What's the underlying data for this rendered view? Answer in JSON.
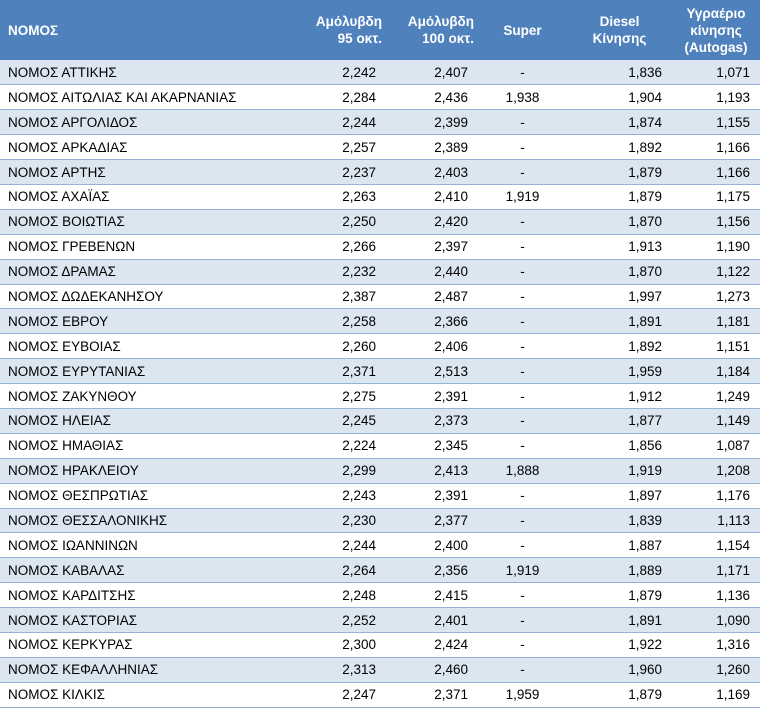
{
  "columns": {
    "name": "ΝΟΜΟΣ",
    "unleaded95_l1": "Αμόλυβδη",
    "unleaded95_l2": "95 οκτ.",
    "unleaded100_l1": "Αμόλυβδη",
    "unleaded100_l2": "100 οκτ.",
    "super": "Super",
    "diesel_l1": "Diesel",
    "diesel_l2": "Κίνησης",
    "lpg_l1": "Υγραέριο",
    "lpg_l2": "κίνησης",
    "lpg_l3": "(Autogas)"
  },
  "rows": [
    {
      "name": "ΝΟΜΟΣ ΑΤΤΙΚΗΣ",
      "u95": "2,242",
      "u100": "2,407",
      "super": "-",
      "diesel": "1,836",
      "lpg": "1,071"
    },
    {
      "name": "ΝΟΜΟΣ ΑΙΤΩΛΙΑΣ ΚΑΙ ΑΚΑΡΝΑΝΙΑΣ",
      "u95": "2,284",
      "u100": "2,436",
      "super": "1,938",
      "diesel": "1,904",
      "lpg": "1,193"
    },
    {
      "name": "ΝΟΜΟΣ ΑΡΓΟΛΙΔΟΣ",
      "u95": "2,244",
      "u100": "2,399",
      "super": "-",
      "diesel": "1,874",
      "lpg": "1,155"
    },
    {
      "name": "ΝΟΜΟΣ ΑΡΚΑΔΙΑΣ",
      "u95": "2,257",
      "u100": "2,389",
      "super": "-",
      "diesel": "1,892",
      "lpg": "1,166"
    },
    {
      "name": "ΝΟΜΟΣ ΑΡΤΗΣ",
      "u95": "2,237",
      "u100": "2,403",
      "super": "-",
      "diesel": "1,879",
      "lpg": "1,166"
    },
    {
      "name": "ΝΟΜΟΣ ΑΧΑΪΑΣ",
      "u95": "2,263",
      "u100": "2,410",
      "super": "1,919",
      "diesel": "1,879",
      "lpg": "1,175"
    },
    {
      "name": "ΝΟΜΟΣ ΒΟΙΩΤΙΑΣ",
      "u95": "2,250",
      "u100": "2,420",
      "super": "-",
      "diesel": "1,870",
      "lpg": "1,156"
    },
    {
      "name": "ΝΟΜΟΣ ΓΡΕΒΕΝΩΝ",
      "u95": "2,266",
      "u100": "2,397",
      "super": "-",
      "diesel": "1,913",
      "lpg": "1,190"
    },
    {
      "name": "ΝΟΜΟΣ ΔΡΑΜΑΣ",
      "u95": "2,232",
      "u100": "2,440",
      "super": "-",
      "diesel": "1,870",
      "lpg": "1,122"
    },
    {
      "name": "ΝΟΜΟΣ ΔΩΔΕΚΑΝΗΣΟΥ",
      "u95": "2,387",
      "u100": "2,487",
      "super": "-",
      "diesel": "1,997",
      "lpg": "1,273"
    },
    {
      "name": "ΝΟΜΟΣ ΕΒΡΟΥ",
      "u95": "2,258",
      "u100": "2,366",
      "super": "-",
      "diesel": "1,891",
      "lpg": "1,181"
    },
    {
      "name": "ΝΟΜΟΣ ΕΥΒΟΙΑΣ",
      "u95": "2,260",
      "u100": "2,406",
      "super": "-",
      "diesel": "1,892",
      "lpg": "1,151"
    },
    {
      "name": "ΝΟΜΟΣ ΕΥΡΥΤΑΝΙΑΣ",
      "u95": "2,371",
      "u100": "2,513",
      "super": "-",
      "diesel": "1,959",
      "lpg": "1,184"
    },
    {
      "name": "ΝΟΜΟΣ ΖΑΚΥΝΘΟΥ",
      "u95": "2,275",
      "u100": "2,391",
      "super": "-",
      "diesel": "1,912",
      "lpg": "1,249"
    },
    {
      "name": "ΝΟΜΟΣ ΗΛΕΙΑΣ",
      "u95": "2,245",
      "u100": "2,373",
      "super": "-",
      "diesel": "1,877",
      "lpg": "1,149"
    },
    {
      "name": "ΝΟΜΟΣ ΗΜΑΘΙΑΣ",
      "u95": "2,224",
      "u100": "2,345",
      "super": "-",
      "diesel": "1,856",
      "lpg": "1,087"
    },
    {
      "name": "ΝΟΜΟΣ ΗΡΑΚΛΕΙΟΥ",
      "u95": "2,299",
      "u100": "2,413",
      "super": "1,888",
      "diesel": "1,919",
      "lpg": "1,208"
    },
    {
      "name": "ΝΟΜΟΣ ΘΕΣΠΡΩΤΙΑΣ",
      "u95": "2,243",
      "u100": "2,391",
      "super": "-",
      "diesel": "1,897",
      "lpg": "1,176"
    },
    {
      "name": "ΝΟΜΟΣ ΘΕΣΣΑΛΟΝΙΚΗΣ",
      "u95": "2,230",
      "u100": "2,377",
      "super": "-",
      "diesel": "1,839",
      "lpg": "1,113"
    },
    {
      "name": "ΝΟΜΟΣ ΙΩΑΝΝΙΝΩΝ",
      "u95": "2,244",
      "u100": "2,400",
      "super": "-",
      "diesel": "1,887",
      "lpg": "1,154"
    },
    {
      "name": "ΝΟΜΟΣ ΚΑΒΑΛΑΣ",
      "u95": "2,264",
      "u100": "2,356",
      "super": "1,919",
      "diesel": "1,889",
      "lpg": "1,171"
    },
    {
      "name": "ΝΟΜΟΣ ΚΑΡΔΙΤΣΗΣ",
      "u95": "2,248",
      "u100": "2,415",
      "super": "-",
      "diesel": "1,879",
      "lpg": "1,136"
    },
    {
      "name": "ΝΟΜΟΣ ΚΑΣΤΟΡΙΑΣ",
      "u95": "2,252",
      "u100": "2,401",
      "super": "-",
      "diesel": "1,891",
      "lpg": "1,090"
    },
    {
      "name": "ΝΟΜΟΣ ΚΕΡΚΥΡΑΣ",
      "u95": "2,300",
      "u100": "2,424",
      "super": "-",
      "diesel": "1,922",
      "lpg": "1,316"
    },
    {
      "name": "ΝΟΜΟΣ ΚΕΦΑΛΛΗΝΙΑΣ",
      "u95": "2,313",
      "u100": "2,460",
      "super": "-",
      "diesel": "1,960",
      "lpg": "1,260"
    },
    {
      "name": "ΝΟΜΟΣ ΚΙΛΚΙΣ",
      "u95": "2,247",
      "u100": "2,371",
      "super": "1,959",
      "diesel": "1,879",
      "lpg": "1,169"
    }
  ]
}
